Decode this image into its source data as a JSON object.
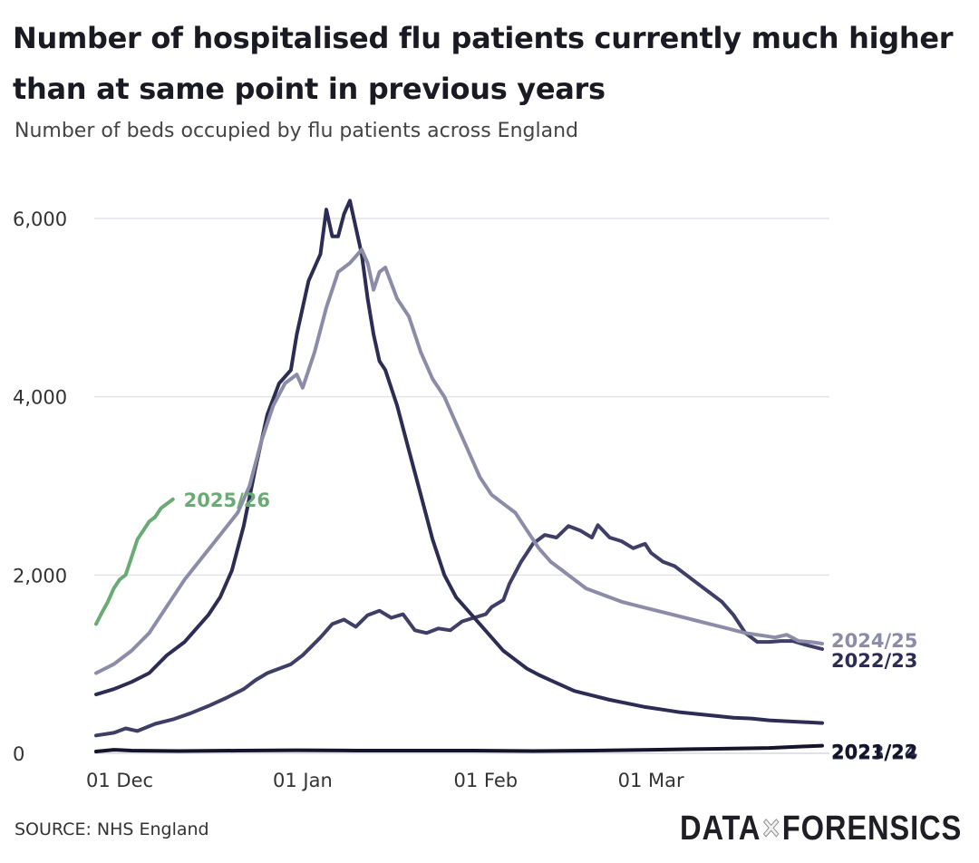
{
  "title": "Number of hospitalised flu patients currently much higher than at same point in previous years",
  "subtitle": "Number of beds occupied by flu patients across England",
  "source": "SOURCE: NHS England",
  "logo": {
    "left": "DATA",
    "sep": "×",
    "right": "FORENSICS"
  },
  "chart_data": {
    "type": "line",
    "title": "Number of hospitalised flu patients currently much higher than at same point in previous years",
    "subtitle": "Number of beds occupied by flu patients across England",
    "xlabel": "",
    "ylabel": "",
    "x_unit": "days since 1 Nov",
    "xlim": [
      26,
      149
    ],
    "ylim": [
      0,
      6000
    ],
    "yticks": [
      {
        "value": 0,
        "label": "0"
      },
      {
        "value": 2000,
        "label": "2,000"
      },
      {
        "value": 4000,
        "label": "4,000"
      },
      {
        "value": 6000,
        "label": "6,000"
      }
    ],
    "xticks": [
      {
        "value": 30,
        "label": "01 Dec"
      },
      {
        "value": 61,
        "label": "01 Jan"
      },
      {
        "value": 92,
        "label": "01 Feb"
      },
      {
        "value": 120,
        "label": "01 Mar"
      }
    ],
    "grid": true,
    "series": [
      {
        "name": "2021/22",
        "color": "#14142b",
        "width": 4,
        "points": [
          [
            26,
            20
          ],
          [
            29,
            40
          ],
          [
            32,
            30
          ],
          [
            40,
            25
          ],
          [
            50,
            30
          ],
          [
            60,
            35
          ],
          [
            70,
            30
          ],
          [
            80,
            30
          ],
          [
            90,
            30
          ],
          [
            100,
            25
          ],
          [
            110,
            30
          ],
          [
            120,
            40
          ],
          [
            130,
            50
          ],
          [
            140,
            60
          ],
          [
            147,
            80
          ],
          [
            149,
            85
          ]
        ]
      },
      {
        "name": "2022/23",
        "color": "#3e3e66",
        "width": 4,
        "points": [
          [
            26,
            200
          ],
          [
            29,
            230
          ],
          [
            31,
            280
          ],
          [
            33,
            250
          ],
          [
            36,
            330
          ],
          [
            39,
            380
          ],
          [
            42,
            450
          ],
          [
            45,
            530
          ],
          [
            48,
            620
          ],
          [
            51,
            720
          ],
          [
            53,
            820
          ],
          [
            55,
            900
          ],
          [
            57,
            950
          ],
          [
            59,
            1000
          ],
          [
            61,
            1100
          ],
          [
            64,
            1300
          ],
          [
            66,
            1450
          ],
          [
            68,
            1500
          ],
          [
            70,
            1420
          ],
          [
            72,
            1550
          ],
          [
            74,
            1600
          ],
          [
            76,
            1520
          ],
          [
            78,
            1560
          ],
          [
            80,
            1380
          ],
          [
            82,
            1350
          ],
          [
            84,
            1400
          ],
          [
            86,
            1380
          ],
          [
            88,
            1480
          ],
          [
            90,
            1520
          ],
          [
            92,
            1560
          ],
          [
            93,
            1640
          ],
          [
            95,
            1720
          ],
          [
            96,
            1900
          ],
          [
            98,
            2150
          ],
          [
            100,
            2350
          ],
          [
            102,
            2450
          ],
          [
            104,
            2420
          ],
          [
            106,
            2550
          ],
          [
            108,
            2500
          ],
          [
            110,
            2420
          ],
          [
            111,
            2560
          ],
          [
            113,
            2420
          ],
          [
            115,
            2380
          ],
          [
            117,
            2300
          ],
          [
            119,
            2350
          ],
          [
            120,
            2250
          ],
          [
            122,
            2150
          ],
          [
            124,
            2100
          ],
          [
            126,
            2000
          ],
          [
            128,
            1900
          ],
          [
            130,
            1800
          ],
          [
            132,
            1700
          ],
          [
            134,
            1550
          ],
          [
            136,
            1350
          ],
          [
            138,
            1250
          ],
          [
            140,
            1250
          ],
          [
            142,
            1260
          ],
          [
            144,
            1260
          ],
          [
            146,
            1220
          ],
          [
            149,
            1170
          ]
        ]
      },
      {
        "name": "2023/24",
        "color": "#2c2c55",
        "width": 4,
        "points": [
          [
            26,
            660
          ],
          [
            29,
            720
          ],
          [
            32,
            800
          ],
          [
            35,
            900
          ],
          [
            38,
            1100
          ],
          [
            41,
            1250
          ],
          [
            43,
            1400
          ],
          [
            45,
            1550
          ],
          [
            47,
            1750
          ],
          [
            49,
            2050
          ],
          [
            51,
            2550
          ],
          [
            53,
            3200
          ],
          [
            55,
            3800
          ],
          [
            57,
            4150
          ],
          [
            59,
            4300
          ],
          [
            60,
            4700
          ],
          [
            62,
            5300
          ],
          [
            64,
            5600
          ],
          [
            65,
            6100
          ],
          [
            66,
            5800
          ],
          [
            67,
            5800
          ],
          [
            68,
            6050
          ],
          [
            69,
            6200
          ],
          [
            70,
            5900
          ],
          [
            71,
            5600
          ],
          [
            72,
            5100
          ],
          [
            73,
            4700
          ],
          [
            74,
            4400
          ],
          [
            75,
            4300
          ],
          [
            77,
            3900
          ],
          [
            79,
            3400
          ],
          [
            81,
            2900
          ],
          [
            83,
            2400
          ],
          [
            85,
            2000
          ],
          [
            87,
            1750
          ],
          [
            89,
            1600
          ],
          [
            91,
            1450
          ],
          [
            93,
            1300
          ],
          [
            95,
            1150
          ],
          [
            97,
            1050
          ],
          [
            99,
            950
          ],
          [
            101,
            880
          ],
          [
            103,
            820
          ],
          [
            105,
            760
          ],
          [
            107,
            700
          ],
          [
            110,
            650
          ],
          [
            113,
            600
          ],
          [
            116,
            560
          ],
          [
            119,
            520
          ],
          [
            122,
            490
          ],
          [
            125,
            460
          ],
          [
            128,
            440
          ],
          [
            131,
            420
          ],
          [
            134,
            400
          ],
          [
            137,
            390
          ],
          [
            140,
            370
          ],
          [
            143,
            360
          ],
          [
            146,
            350
          ],
          [
            149,
            340
          ]
        ]
      },
      {
        "name": "2024/25",
        "color": "#8c8ca8",
        "width": 4,
        "points": [
          [
            26,
            900
          ],
          [
            29,
            1000
          ],
          [
            32,
            1150
          ],
          [
            35,
            1350
          ],
          [
            38,
            1650
          ],
          [
            41,
            1950
          ],
          [
            44,
            2200
          ],
          [
            47,
            2450
          ],
          [
            50,
            2700
          ],
          [
            52,
            3000
          ],
          [
            54,
            3500
          ],
          [
            56,
            3900
          ],
          [
            58,
            4150
          ],
          [
            60,
            4250
          ],
          [
            61,
            4100
          ],
          [
            63,
            4500
          ],
          [
            65,
            5000
          ],
          [
            67,
            5400
          ],
          [
            69,
            5500
          ],
          [
            71,
            5650
          ],
          [
            72,
            5500
          ],
          [
            73,
            5200
          ],
          [
            74,
            5400
          ],
          [
            75,
            5450
          ],
          [
            77,
            5100
          ],
          [
            79,
            4900
          ],
          [
            81,
            4500
          ],
          [
            83,
            4200
          ],
          [
            85,
            4000
          ],
          [
            87,
            3700
          ],
          [
            89,
            3400
          ],
          [
            91,
            3100
          ],
          [
            93,
            2900
          ],
          [
            95,
            2800
          ],
          [
            97,
            2700
          ],
          [
            99,
            2500
          ],
          [
            101,
            2300
          ],
          [
            103,
            2150
          ],
          [
            105,
            2050
          ],
          [
            107,
            1950
          ],
          [
            109,
            1850
          ],
          [
            111,
            1800
          ],
          [
            113,
            1750
          ],
          [
            115,
            1700
          ],
          [
            118,
            1650
          ],
          [
            121,
            1600
          ],
          [
            124,
            1550
          ],
          [
            127,
            1500
          ],
          [
            130,
            1450
          ],
          [
            133,
            1400
          ],
          [
            136,
            1350
          ],
          [
            139,
            1320
          ],
          [
            141,
            1300
          ],
          [
            143,
            1330
          ],
          [
            145,
            1260
          ],
          [
            147,
            1250
          ],
          [
            149,
            1230
          ]
        ]
      },
      {
        "name": "2025/26",
        "color": "#6aaa74",
        "width": 4,
        "points": [
          [
            26,
            1450
          ],
          [
            27,
            1580
          ],
          [
            28,
            1700
          ],
          [
            29,
            1850
          ],
          [
            30,
            1950
          ],
          [
            31,
            2000
          ],
          [
            32,
            2200
          ],
          [
            33,
            2400
          ],
          [
            34,
            2500
          ],
          [
            35,
            2600
          ],
          [
            36,
            2650
          ],
          [
            37,
            2750
          ],
          [
            38,
            2800
          ],
          [
            39,
            2850
          ]
        ]
      }
    ],
    "end_labels": [
      {
        "series": "2025/26",
        "text": "2025/26",
        "color": "#6aaa74"
      },
      {
        "series": "2024/25",
        "text": "2024/25",
        "color": "#8c8ca8"
      },
      {
        "series": "2023/24",
        "text": "2023/24",
        "color": "#2c2c55"
      },
      {
        "series": "2022/23",
        "text": "2022/23",
        "color": "#2c2c55"
      },
      {
        "series": "2021/22",
        "text": "2021/22",
        "color": "#14142b"
      }
    ]
  }
}
